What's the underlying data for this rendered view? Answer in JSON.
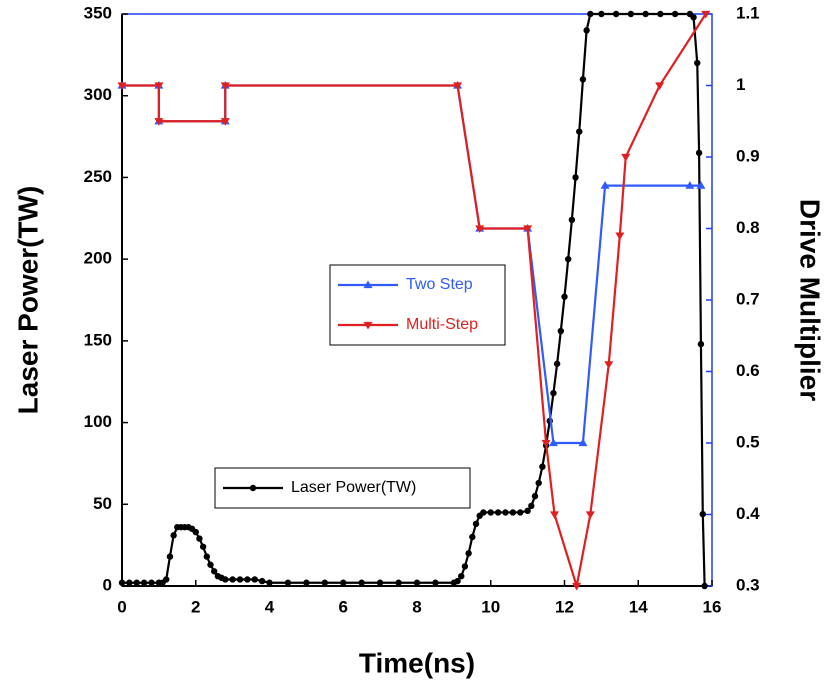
{
  "chart_data": {
    "type": "line",
    "x_label": "Time(ns)",
    "y_label": "Laser Power(TW)",
    "y2_label": "Drive Multiplier",
    "xlim": [
      0,
      16
    ],
    "xticks": [
      0,
      2,
      4,
      6,
      8,
      10,
      12,
      14,
      16
    ],
    "ylim": [
      0,
      350
    ],
    "yticks": [
      0,
      50,
      100,
      150,
      200,
      250,
      300,
      350
    ],
    "y2lim": [
      0.3,
      1.1
    ],
    "y2ticks": [
      0.3,
      0.4,
      0.5,
      0.6,
      0.7,
      0.8,
      0.9,
      1,
      1.1
    ],
    "frame_color": "#1f3fff",
    "series": [
      {
        "name": "Laser Power(TW)",
        "color": "#000000",
        "marker": "circle",
        "x": [
          0,
          0.2,
          0.4,
          0.6,
          0.8,
          1.0,
          1.1,
          1.2,
          1.3,
          1.4,
          1.5,
          1.6,
          1.7,
          1.8,
          1.9,
          2.0,
          2.1,
          2.2,
          2.3,
          2.4,
          2.5,
          2.6,
          2.7,
          2.8,
          3.0,
          3.2,
          3.4,
          3.6,
          3.8,
          4.0,
          4.5,
          5,
          5.5,
          6,
          6.5,
          7,
          7.5,
          8,
          8.5,
          9,
          9.1,
          9.2,
          9.3,
          9.4,
          9.5,
          9.6,
          9.7,
          9.8,
          10.0,
          10.2,
          10.4,
          10.6,
          10.8,
          11.0,
          11.1,
          11.2,
          11.3,
          11.4,
          11.5,
          11.6,
          11.7,
          11.8,
          11.9,
          12.0,
          12.1,
          12.2,
          12.3,
          12.4,
          12.5,
          12.6,
          12.7,
          13.0,
          13.4,
          13.8,
          14.2,
          14.6,
          15.0,
          15.4,
          15.5,
          15.6,
          15.65,
          15.7,
          15.75,
          15.8
        ],
        "values": [
          2,
          2,
          2,
          2,
          2,
          2,
          2,
          4,
          18,
          31,
          36,
          36,
          36,
          36,
          35,
          33,
          29,
          24,
          18,
          13,
          9,
          6,
          5,
          4,
          4,
          4,
          4,
          4,
          3,
          2,
          2,
          2,
          2,
          2,
          2,
          2,
          2,
          2,
          2,
          2,
          3,
          6,
          12,
          20,
          30,
          38,
          43,
          45,
          45,
          45,
          45,
          45,
          45,
          46,
          49,
          55,
          63,
          73,
          86,
          101,
          118,
          136,
          156,
          177,
          200,
          224,
          250,
          278,
          310,
          340,
          350,
          350,
          350,
          350,
          350,
          350,
          350,
          350,
          348,
          320,
          265,
          148,
          44,
          0
        ]
      },
      {
        "name": "Two Step",
        "color": "#2f5bff",
        "marker": "triangle-up",
        "axis": "y2",
        "x": [
          0,
          1.0,
          1.0,
          2.8,
          2.8,
          9.1,
          9.7,
          11.0,
          11.7,
          12.5,
          13.1,
          15.4,
          15.7
        ],
        "values": [
          1,
          1,
          0.95,
          0.95,
          1,
          1,
          0.8,
          0.8,
          0.5,
          0.5,
          0.86,
          0.86,
          0.86
        ]
      },
      {
        "name": "Multi-Step",
        "color": "#e02020",
        "marker": "triangle-down",
        "axis": "y2",
        "x": [
          0,
          1.0,
          1.0,
          2.8,
          2.8,
          9.1,
          9.7,
          11.0,
          11.5,
          11.73,
          12.33,
          12.7,
          13.2,
          13.5,
          13.66,
          14.58,
          15.83
        ],
        "values": [
          1,
          1,
          0.95,
          0.95,
          1,
          1,
          0.8,
          0.8,
          0.5,
          0.4,
          0.3,
          0.4,
          0.61,
          0.79,
          0.9,
          1,
          1.1
        ]
      }
    ]
  }
}
